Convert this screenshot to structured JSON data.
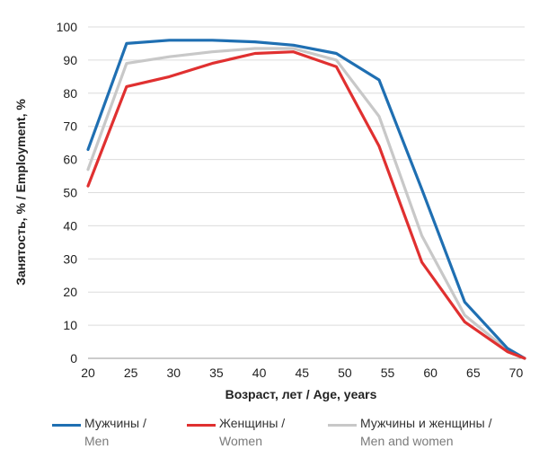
{
  "chart_data": {
    "type": "line",
    "xlabel": "Возраст, лет / Age, years",
    "ylabel": "Занятость, % / Employment, %",
    "x": [
      20,
      25,
      30,
      35,
      40,
      45,
      50,
      55,
      60,
      65,
      70
    ],
    "xlim": [
      20,
      71
    ],
    "ylim": [
      0,
      100
    ],
    "x_ticks": [
      20,
      25,
      30,
      35,
      40,
      45,
      50,
      55,
      60,
      65,
      70
    ],
    "y_ticks": [
      0,
      10,
      20,
      30,
      40,
      50,
      60,
      70,
      80,
      90,
      100
    ],
    "grid": "horizontal",
    "legend_position": "bottom",
    "series": [
      {
        "key": "men",
        "name": "Мужчины /",
        "name_en": "Men",
        "color": "#1f6fb2",
        "points": [
          [
            20,
            63
          ],
          [
            24.5,
            95
          ],
          [
            29.5,
            96
          ],
          [
            34.5,
            96
          ],
          [
            39.5,
            95.5
          ],
          [
            44,
            94.5
          ],
          [
            49,
            92
          ],
          [
            54,
            84
          ],
          [
            59,
            51
          ],
          [
            64,
            17
          ],
          [
            69,
            3
          ],
          [
            71,
            0
          ]
        ]
      },
      {
        "key": "women",
        "name": "Женщины /",
        "name_en": "Women",
        "color": "#e03030",
        "points": [
          [
            20,
            52
          ],
          [
            24.5,
            82
          ],
          [
            29.5,
            85
          ],
          [
            34.5,
            89
          ],
          [
            39.5,
            92
          ],
          [
            44,
            92.5
          ],
          [
            49,
            88
          ],
          [
            54,
            64
          ],
          [
            59,
            29
          ],
          [
            64,
            11
          ],
          [
            69,
            2
          ],
          [
            71,
            0
          ]
        ]
      },
      {
        "key": "all",
        "name": "Мужчины и женщины /",
        "name_en": "Men and women",
        "color": "#c8c8c8",
        "points": [
          [
            20,
            57
          ],
          [
            24.5,
            89
          ],
          [
            29.5,
            91
          ],
          [
            34.5,
            92.5
          ],
          [
            39.5,
            93.5
          ],
          [
            44,
            93.5
          ],
          [
            49,
            90
          ],
          [
            54,
            73
          ],
          [
            59,
            37
          ],
          [
            64,
            13
          ],
          [
            69,
            2.5
          ],
          [
            71,
            0
          ]
        ]
      }
    ]
  }
}
